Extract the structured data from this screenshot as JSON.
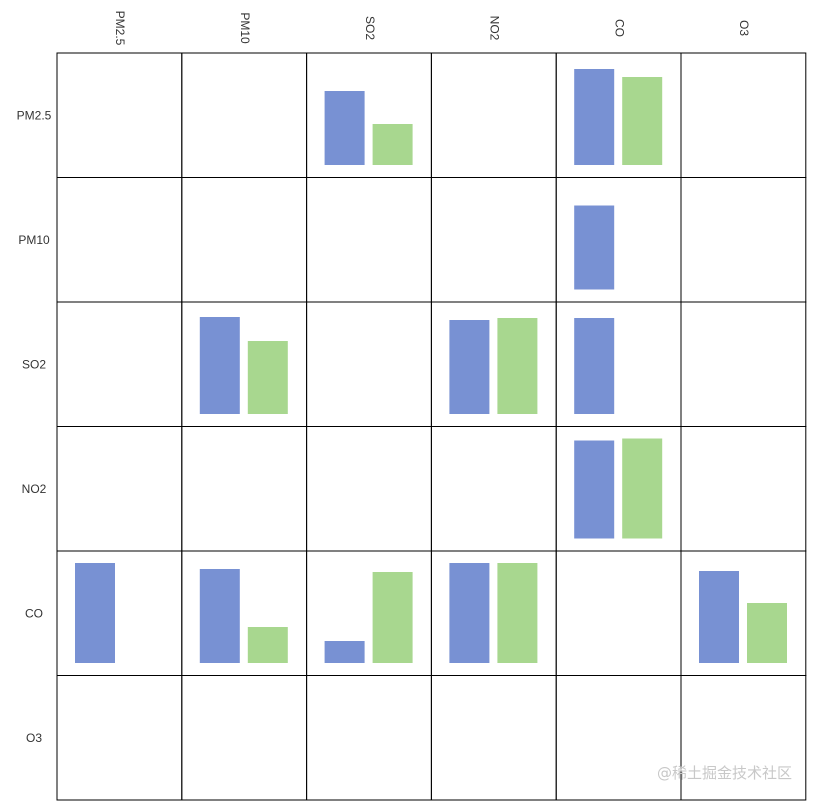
{
  "chart_data": {
    "type": "bar",
    "layout": "matrix",
    "rows": [
      "PM2.5",
      "PM10",
      "SO2",
      "NO2",
      "CO",
      "O3"
    ],
    "columns": [
      "PM2.5",
      "PM10",
      "SO2",
      "NO2",
      "CO",
      "O3"
    ],
    "grid": true,
    "value_range": [
      0,
      1
    ],
    "colors": {
      "series_1": "#7891d3",
      "series_2": "#a8d78f",
      "border": "#000000"
    },
    "cells": [
      {
        "row": "PM2.5",
        "col": "SO2",
        "values": [
          0.74,
          0.41
        ]
      },
      {
        "row": "PM2.5",
        "col": "CO",
        "values": [
          0.96,
          0.88
        ]
      },
      {
        "row": "PM10",
        "col": "CO",
        "values": [
          0.84
        ]
      },
      {
        "row": "SO2",
        "col": "PM10",
        "values": [
          0.97,
          0.73
        ]
      },
      {
        "row": "SO2",
        "col": "NO2",
        "values": [
          0.94,
          0.96
        ]
      },
      {
        "row": "SO2",
        "col": "CO",
        "values": [
          0.96
        ]
      },
      {
        "row": "NO2",
        "col": "CO",
        "values": [
          0.98,
          1.0
        ]
      },
      {
        "row": "CO",
        "col": "PM2.5",
        "values": [
          1.0
        ]
      },
      {
        "row": "CO",
        "col": "PM10",
        "values": [
          0.94,
          0.36
        ]
      },
      {
        "row": "CO",
        "col": "SO2",
        "values": [
          0.22,
          0.91
        ]
      },
      {
        "row": "CO",
        "col": "NO2",
        "values": [
          1.0,
          1.0
        ]
      },
      {
        "row": "CO",
        "col": "O3",
        "values": [
          0.92,
          0.6
        ]
      }
    ]
  },
  "watermark": "@稀土掘金技术社区"
}
